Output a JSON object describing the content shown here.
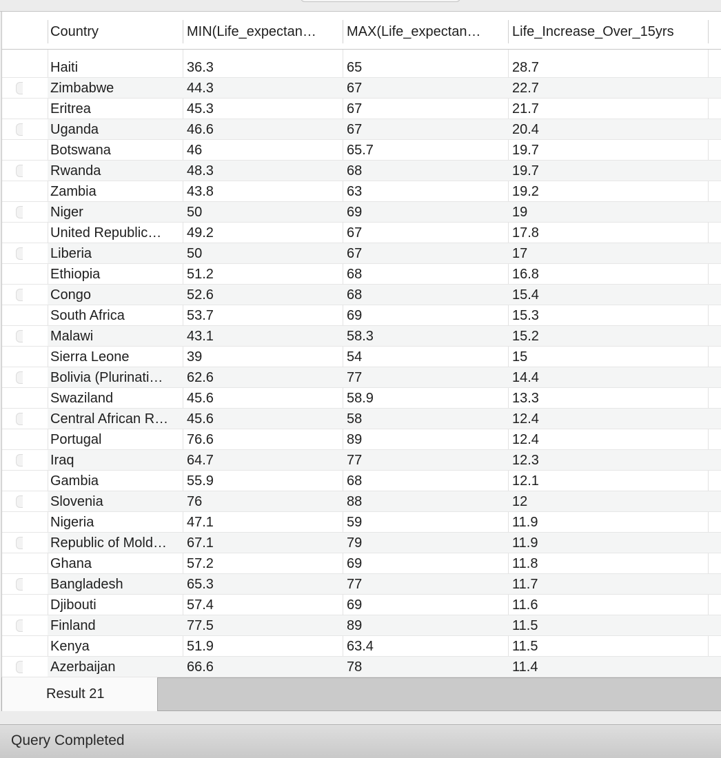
{
  "grid": {
    "columns": [
      "Country",
      "MIN(Life_expectan…",
      "MAX(Life_expectan…",
      "Life_Increase_Over_15yrs"
    ],
    "rows": [
      [
        "Haiti",
        "36.3",
        "65",
        "28.7"
      ],
      [
        "Zimbabwe",
        "44.3",
        "67",
        "22.7"
      ],
      [
        "Eritrea",
        "45.3",
        "67",
        "21.7"
      ],
      [
        "Uganda",
        "46.6",
        "67",
        "20.4"
      ],
      [
        "Botswana",
        "46",
        "65.7",
        "19.7"
      ],
      [
        "Rwanda",
        "48.3",
        "68",
        "19.7"
      ],
      [
        "Zambia",
        "43.8",
        "63",
        "19.2"
      ],
      [
        "Niger",
        "50",
        "69",
        "19"
      ],
      [
        "United Republic…",
        "49.2",
        "67",
        "17.8"
      ],
      [
        "Liberia",
        "50",
        "67",
        "17"
      ],
      [
        "Ethiopia",
        "51.2",
        "68",
        "16.8"
      ],
      [
        "Congo",
        "52.6",
        "68",
        "15.4"
      ],
      [
        "South Africa",
        "53.7",
        "69",
        "15.3"
      ],
      [
        "Malawi",
        "43.1",
        "58.3",
        "15.2"
      ],
      [
        "Sierra Leone",
        "39",
        "54",
        "15"
      ],
      [
        "Bolivia (Plurinati…",
        "62.6",
        "77",
        "14.4"
      ],
      [
        "Swaziland",
        "45.6",
        "58.9",
        "13.3"
      ],
      [
        "Central African R…",
        "45.6",
        "58",
        "12.4"
      ],
      [
        "Portugal",
        "76.6",
        "89",
        "12.4"
      ],
      [
        "Iraq",
        "64.7",
        "77",
        "12.3"
      ],
      [
        "Gambia",
        "55.9",
        "68",
        "12.1"
      ],
      [
        "Slovenia",
        "76",
        "88",
        "12"
      ],
      [
        "Nigeria",
        "47.1",
        "59",
        "11.9"
      ],
      [
        "Republic of Mold…",
        "67.1",
        "79",
        "11.9"
      ],
      [
        "Ghana",
        "57.2",
        "69",
        "11.8"
      ],
      [
        "Bangladesh",
        "65.3",
        "77",
        "11.7"
      ],
      [
        "Djibouti",
        "57.4",
        "69",
        "11.6"
      ],
      [
        "Finland",
        "77.5",
        "89",
        "11.5"
      ],
      [
        "Kenya",
        "51.9",
        "63.4",
        "11.5"
      ],
      [
        "Azerbaijan",
        "66.6",
        "78",
        "11.4"
      ]
    ]
  },
  "tabs": {
    "result_label": "Result 21"
  },
  "status": {
    "text": "Query Completed"
  },
  "colors": {
    "band": "#f4f5f5",
    "status_bar": "#d2d2d2",
    "tab_bar": "#cacaca"
  }
}
